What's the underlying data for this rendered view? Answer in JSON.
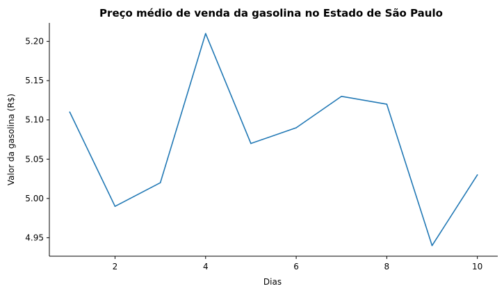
{
  "chart_data": {
    "type": "line",
    "title": "Preço médio de venda da gasolina no Estado de São Paulo",
    "xlabel": "Dias",
    "ylabel": "Valor da gasolina (R$)",
    "x": [
      1,
      2,
      3,
      4,
      5,
      6,
      7,
      8,
      9,
      10
    ],
    "series": [
      {
        "values": [
          5.11,
          4.99,
          5.02,
          5.21,
          5.07,
          5.09,
          5.13,
          5.12,
          4.94,
          5.03
        ],
        "color": "#1f77b4"
      }
    ],
    "xlim": [
      0.55,
      10.45
    ],
    "ylim": [
      4.9265,
      5.2235
    ],
    "xticks": [
      2,
      4,
      6,
      8,
      10
    ],
    "xtick_labels": [
      "2",
      "4",
      "6",
      "8",
      "10"
    ],
    "yticks": [
      4.95,
      5.0,
      5.05,
      5.1,
      5.15,
      5.2
    ],
    "ytick_labels": [
      "4.95",
      "5.00",
      "5.05",
      "5.10",
      "5.15",
      "5.20"
    ],
    "grid": false,
    "spines": "left-bottom"
  }
}
